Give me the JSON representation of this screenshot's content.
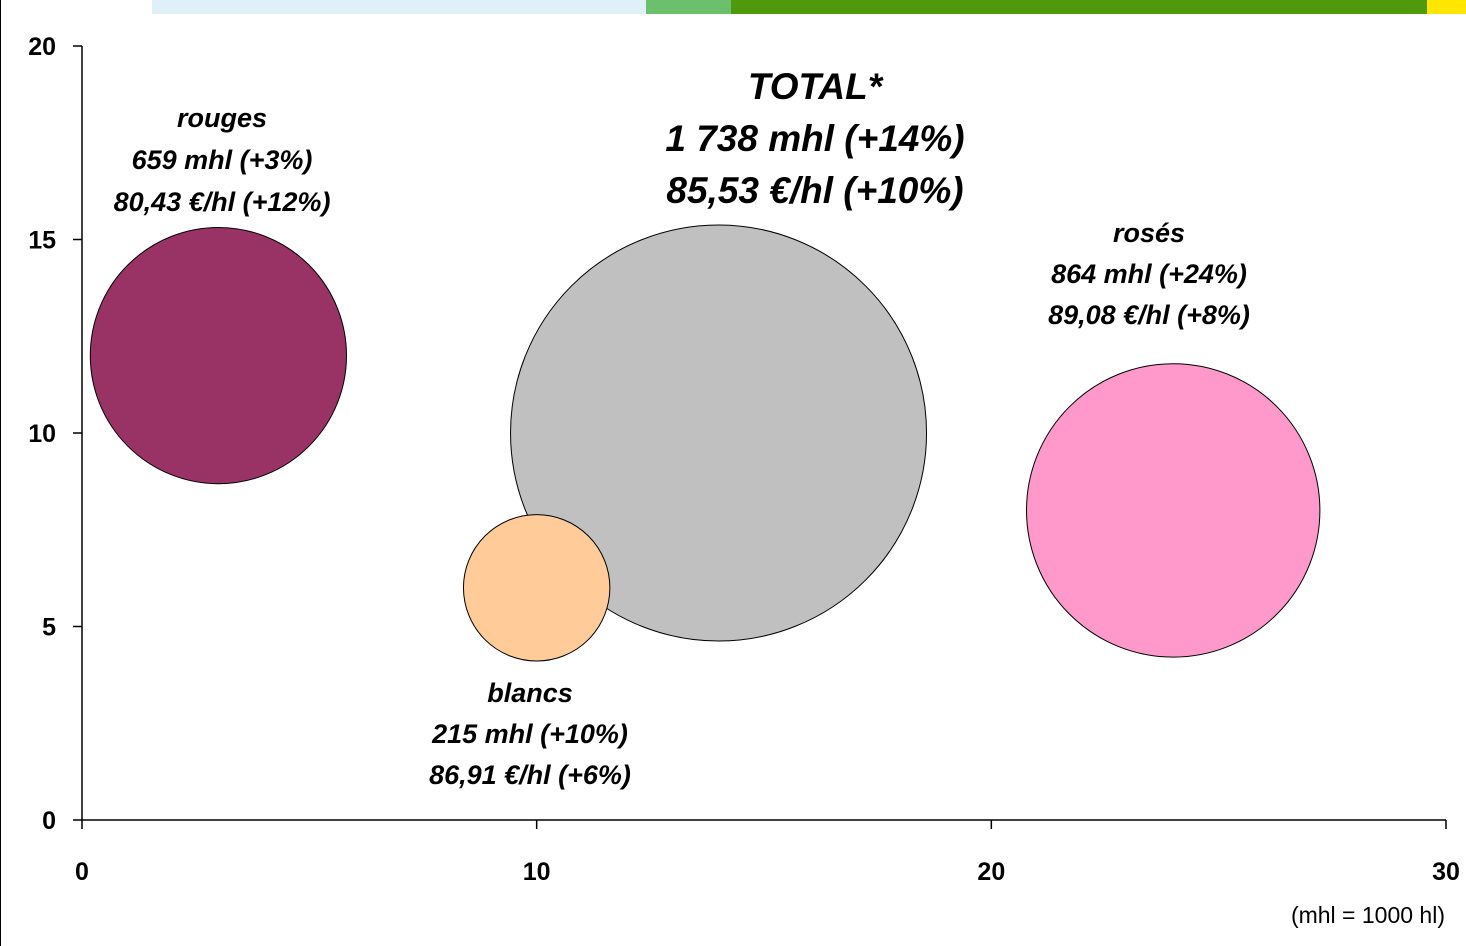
{
  "header_band_colors": [
    "#dff0f8",
    "#6cbf6c",
    "#4f9a0c",
    "#ffe600"
  ],
  "chart_data": {
    "type": "scatter",
    "variant": "bubble",
    "title": "",
    "xlabel": "",
    "ylabel": "",
    "xlim": [
      0,
      30
    ],
    "ylim": [
      0,
      20
    ],
    "x_ticks": [
      "0",
      "10",
      "20",
      "30"
    ],
    "y_ticks": [
      "0",
      "5",
      "10",
      "15",
      "20"
    ],
    "grid": false,
    "unit_note": "(mhl = 1000 hl)",
    "bubbles": [
      {
        "key": "rouges",
        "x": 3,
        "y": 12,
        "size": 659,
        "color": "#993366",
        "label_lines": [
          "rouges",
          "659 mhl (+3%)",
          "80,43 €/hl (+12%)"
        ]
      },
      {
        "key": "total",
        "x": 14,
        "y": 10,
        "size": 1738,
        "color": "#c0c0c0",
        "label_lines": [
          "TOTAL*",
          "1 738 mhl (+14%)",
          "85,53 €/hl (+10%)"
        ]
      },
      {
        "key": "blancs",
        "x": 10,
        "y": 6,
        "size": 215,
        "color": "#ffcc99",
        "label_lines": [
          "blancs",
          "215 mhl (+10%)",
          "86,91 €/hl (+6%)"
        ]
      },
      {
        "key": "roses",
        "x": 24,
        "y": 8,
        "size": 864,
        "color": "#ff99cc",
        "label_lines": [
          "rosés",
          "864 mhl (+24%)",
          "89,08 €/hl (+8%)"
        ]
      }
    ]
  }
}
